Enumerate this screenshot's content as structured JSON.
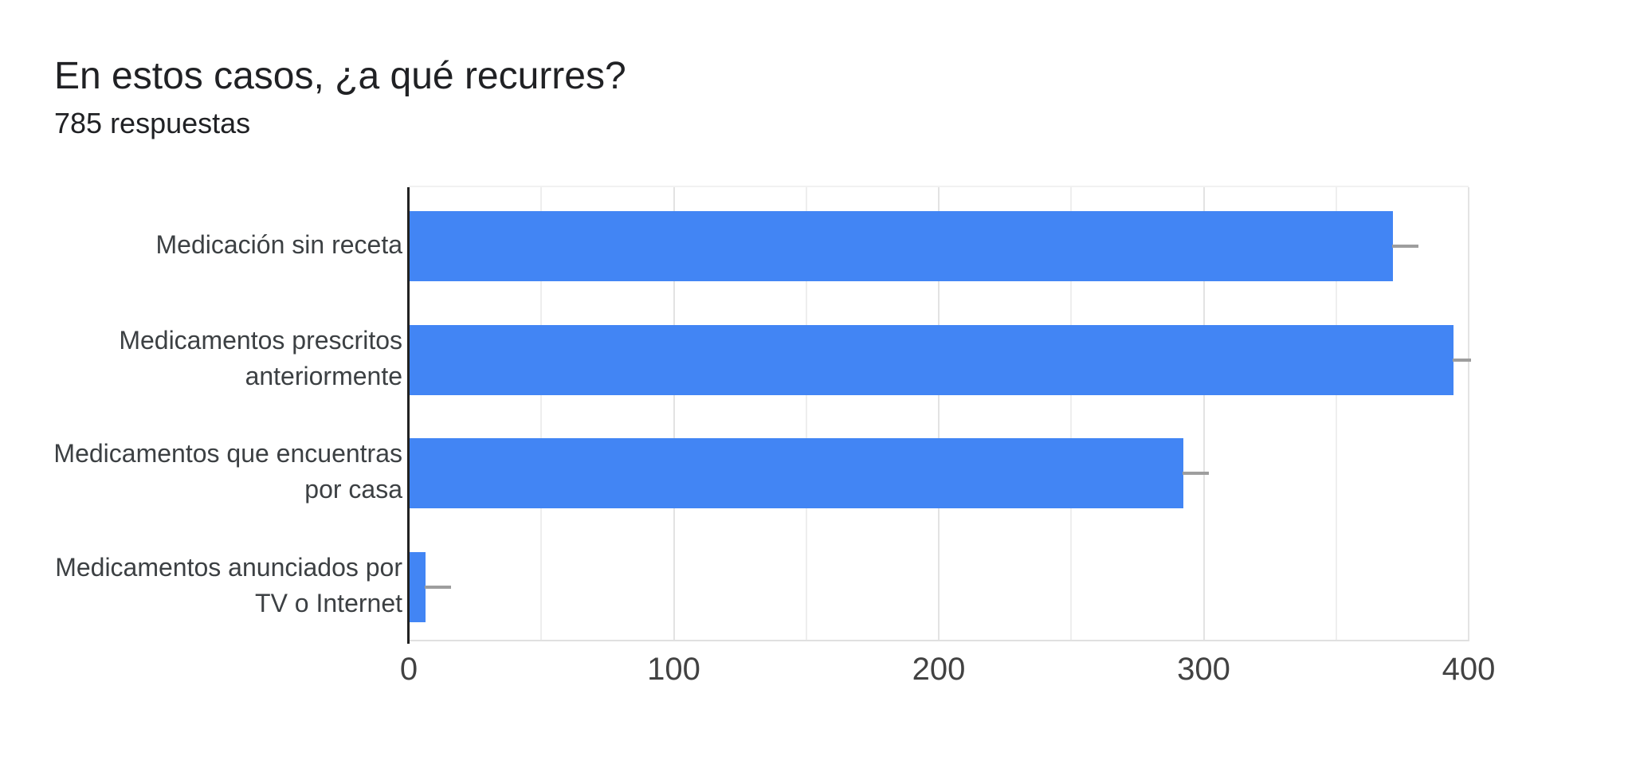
{
  "header": {
    "title": "En estos casos, ¿a qué recurres?",
    "subtitle": "785 respuestas"
  },
  "chart_data": {
    "type": "bar",
    "orientation": "horizontal",
    "title": "En estos casos, ¿a qué recurres?",
    "subtitle": "785 respuestas",
    "categories": [
      "Medicación sin receta",
      "Medicamentos prescritos anteriormente",
      "Medicamentos que encuentras por casa",
      "Medicamentos anunciados por TV o Internet"
    ],
    "label_lines": [
      [
        "Medicación sin receta"
      ],
      [
        "Medicamentos prescritos",
        "anteriormente"
      ],
      [
        "Medicamentos que encuentras",
        "por casa"
      ],
      [
        "Medicamentos anunciados por",
        "TV o Internet"
      ]
    ],
    "values": [
      371,
      394,
      292,
      6
    ],
    "whisker_ends": [
      381,
      401,
      302,
      16
    ],
    "xlim": [
      0,
      400
    ],
    "xticks": [
      0,
      100,
      200,
      300,
      400
    ],
    "minor_grid_step": 50,
    "grid": true,
    "legend": "none",
    "colors": {
      "bar": "#4285f4",
      "axis_line": "#212121",
      "gridline": "#e8e8e8",
      "whisker": "#9e9e9e",
      "tick_label": "#424242",
      "category_label": "#3c4043",
      "title": "#202124"
    }
  }
}
